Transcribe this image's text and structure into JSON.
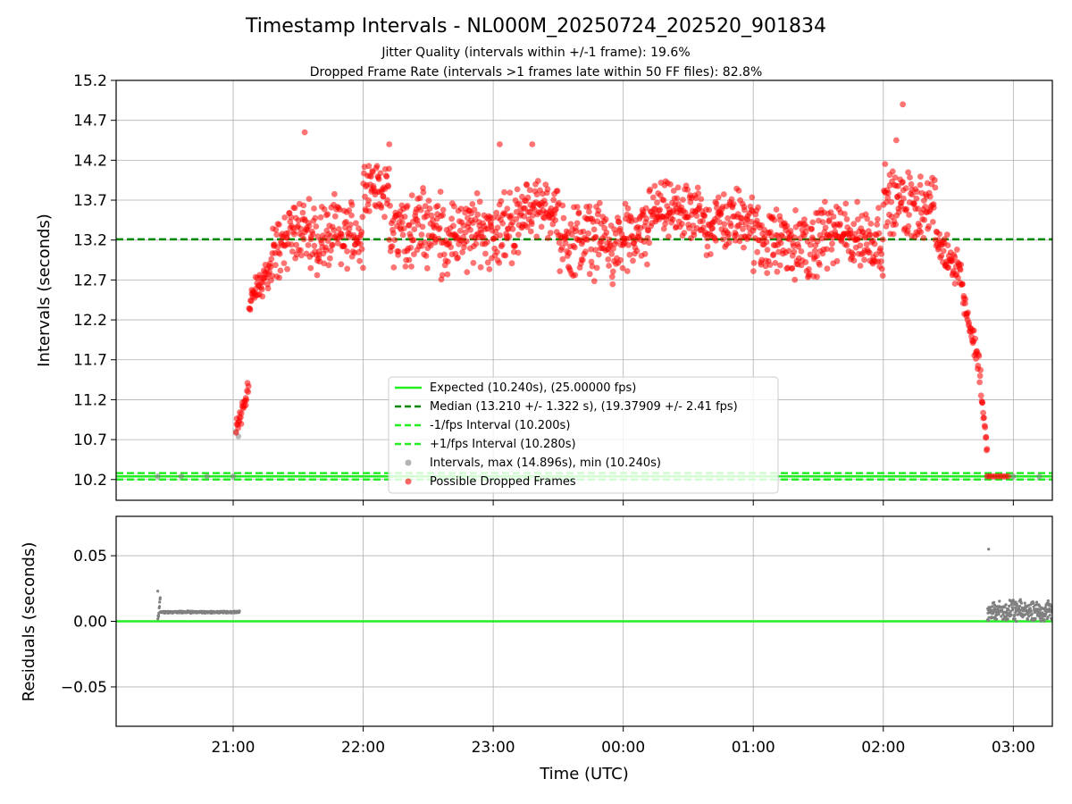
{
  "figure": {
    "title": "Timestamp Intervals - NL000M_20250724_202520_901834",
    "subtitle_lines": [
      "Jitter Quality (intervals within +/-1 frame): 19.6%",
      "Dropped Frame Rate (intervals >1 frames late within 50 FF files): 82.8%"
    ],
    "xlabel": "Time (UTC)",
    "x_tick_labels": [
      "21:00",
      "22:00",
      "23:00",
      "00:00",
      "01:00",
      "02:00",
      "03:00"
    ]
  },
  "chart_data": [
    {
      "type": "scatter",
      "panel": "intervals",
      "ylabel": "Intervals (seconds)",
      "x_unit": "hours since 20:00 UTC on 2025-07-24 (label-consistent axis)",
      "x_range": [
        0.1,
        7.3
      ],
      "ylim": [
        9.94,
        15.2
      ],
      "y_ticks": [
        10.2,
        10.7,
        11.2,
        11.7,
        12.2,
        12.7,
        13.2,
        13.7,
        14.2,
        14.7,
        15.2
      ],
      "y_tick_labels": [
        "10.2",
        "10.7",
        "11.2",
        "11.7",
        "12.2",
        "12.7",
        "13.2",
        "13.7",
        "14.2",
        "14.7",
        "15.2"
      ],
      "grid": true,
      "legend_position": "lower-center",
      "reference_lines": [
        {
          "name": "Expected (10.240s), (25.00000 fps)",
          "y": 10.24,
          "style": "solid",
          "color": "#22ee22"
        },
        {
          "name": "Median (13.210 +/- 1.322 s), (19.37909 +/- 2.41 fps)",
          "y": 13.21,
          "style": "dashed",
          "color": "#008800"
        },
        {
          "name": "-1/fps Interval (10.200s)",
          "y": 10.2,
          "style": "dashed",
          "color": "#22ee22"
        },
        {
          "name": "+1/fps Interval (10.280s)",
          "y": 10.28,
          "style": "dashed",
          "color": "#22ee22"
        }
      ],
      "series": [
        {
          "name": "Intervals, max (14.896s), min (10.240s)",
          "color": "#808080",
          "points": [
            [
              0.42,
              10.24
            ],
            [
              0.6,
              10.24
            ],
            [
              0.8,
              10.24
            ],
            [
              1.0,
              10.24
            ],
            [
              1.02,
              10.8
            ],
            [
              1.04,
              10.74
            ],
            [
              6.8,
              10.24
            ],
            [
              7.0,
              10.24
            ],
            [
              7.2,
              10.24
            ]
          ]
        },
        {
          "name": "Possible Dropped Frames",
          "color": "#ff0000",
          "segments": [
            {
              "x": [
                1.02,
                1.12
              ],
              "y": [
                10.8,
                11.4
              ],
              "spread": 0.2
            },
            {
              "x": [
                1.12,
                1.3
              ],
              "y": [
                12.4,
                12.9
              ],
              "spread": 0.25
            },
            {
              "x": [
                1.3,
                1.55
              ],
              "y": [
                13.0,
                13.5
              ],
              "spread": 0.5
            },
            {
              "x": [
                1.55,
                2.0
              ],
              "y": [
                13.2,
                13.3
              ],
              "spread": 0.55
            },
            {
              "x": [
                2.0,
                2.2
              ],
              "y": [
                13.9,
                13.8
              ],
              "spread": 0.35
            },
            {
              "x": [
                2.2,
                2.6
              ],
              "y": [
                13.3,
                13.4
              ],
              "spread": 0.6
            },
            {
              "x": [
                2.6,
                3.2
              ],
              "y": [
                13.2,
                13.4
              ],
              "spread": 0.55
            },
            {
              "x": [
                3.2,
                3.5
              ],
              "y": [
                13.6,
                13.6
              ],
              "spread": 0.4
            },
            {
              "x": [
                3.5,
                3.9
              ],
              "y": [
                13.2,
                13.2
              ],
              "spread": 0.55
            },
            {
              "x": [
                3.9,
                4.2
              ],
              "y": [
                13.1,
                13.3
              ],
              "spread": 0.5
            },
            {
              "x": [
                4.2,
                4.6
              ],
              "y": [
                13.6,
                13.5
              ],
              "spread": 0.4
            },
            {
              "x": [
                4.6,
                5.0
              ],
              "y": [
                13.4,
                13.5
              ],
              "spread": 0.45
            },
            {
              "x": [
                5.0,
                5.5
              ],
              "y": [
                13.2,
                13.1
              ],
              "spread": 0.5
            },
            {
              "x": [
                5.5,
                6.0
              ],
              "y": [
                13.3,
                13.2
              ],
              "spread": 0.5
            },
            {
              "x": [
                6.0,
                6.4
              ],
              "y": [
                13.7,
                13.6
              ],
              "spread": 0.5
            },
            {
              "x": [
                6.4,
                6.6
              ],
              "y": [
                13.2,
                12.8
              ],
              "spread": 0.3
            },
            {
              "x": [
                6.6,
                6.75
              ],
              "y": [
                12.6,
                11.5
              ],
              "spread": 0.2
            },
            {
              "x": [
                6.75,
                6.8
              ],
              "y": [
                11.3,
                10.5
              ],
              "spread": 0.1
            }
          ],
          "extra_points": [
            [
              6.8,
              10.24
            ],
            [
              6.82,
              10.24
            ],
            [
              6.84,
              10.24
            ],
            [
              6.86,
              10.24
            ],
            [
              6.88,
              10.24
            ],
            [
              6.9,
              10.24
            ],
            [
              6.92,
              10.24
            ],
            [
              6.94,
              10.24
            ],
            [
              6.96,
              10.24
            ],
            [
              2.2,
              14.4
            ],
            [
              1.55,
              14.55
            ],
            [
              3.05,
              14.4
            ],
            [
              3.3,
              14.4
            ],
            [
              6.15,
              14.9
            ],
            [
              6.1,
              14.45
            ]
          ]
        }
      ]
    },
    {
      "type": "scatter",
      "panel": "residuals",
      "ylabel": "Residuals (seconds)",
      "x_range": [
        0.1,
        7.3
      ],
      "ylim": [
        -0.08,
        0.08
      ],
      "y_ticks": [
        0.05,
        0.0,
        -0.05
      ],
      "y_tick_labels": [
        "0.05",
        "0.00",
        "−0.05"
      ],
      "grid": true,
      "reference_lines": [
        {
          "y": 0.0,
          "style": "solid",
          "color": "#22ee22"
        }
      ],
      "series": [
        {
          "color": "#808080",
          "segments": [
            {
              "x": [
                0.42,
                0.44
              ],
              "y": [
                0.0,
                0.02
              ],
              "spread": 0.003
            },
            {
              "x": [
                0.44,
                1.05
              ],
              "y": [
                0.007,
                0.007
              ],
              "spread": 0.001
            },
            {
              "x": [
                6.8,
                7.3
              ],
              "y": [
                0.008,
                0.008
              ],
              "spread": 0.009
            }
          ],
          "extra_points": [
            [
              0.42,
              0.023
            ],
            [
              6.81,
              0.055
            ]
          ]
        }
      ]
    }
  ]
}
